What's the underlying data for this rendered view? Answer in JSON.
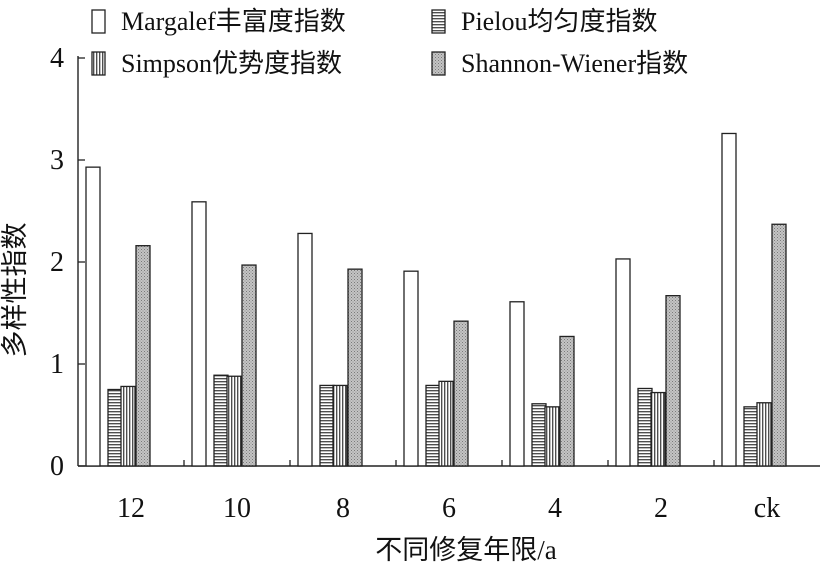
{
  "chart_data": {
    "type": "bar",
    "xlabel": "不同修复年限/a",
    "ylabel": "多样性指数",
    "ylim": [
      0,
      4
    ],
    "yticks": [
      0,
      1,
      2,
      3,
      4
    ],
    "categories": [
      "12",
      "10",
      "8",
      "6",
      "4",
      "2",
      "ck"
    ],
    "grid": false,
    "legend_position": "top",
    "series": [
      {
        "name": "Margalef丰富度指数",
        "pattern": "white",
        "values": [
          2.93,
          2.59,
          2.28,
          1.91,
          1.61,
          2.03,
          3.26
        ]
      },
      {
        "name": "Pielou均匀度指数",
        "pattern": "horizontal-hatch",
        "values": [
          0.75,
          0.89,
          0.79,
          0.79,
          0.61,
          0.76,
          0.58
        ]
      },
      {
        "name": "Simpson优势度指数",
        "pattern": "vertical-hatch",
        "values": [
          0.78,
          0.88,
          0.79,
          0.83,
          0.58,
          0.72,
          0.62
        ]
      },
      {
        "name": "Shannon-Wiener指数",
        "pattern": "dotted-gray",
        "values": [
          2.16,
          1.97,
          1.93,
          1.42,
          1.27,
          1.67,
          2.37
        ]
      }
    ]
  }
}
